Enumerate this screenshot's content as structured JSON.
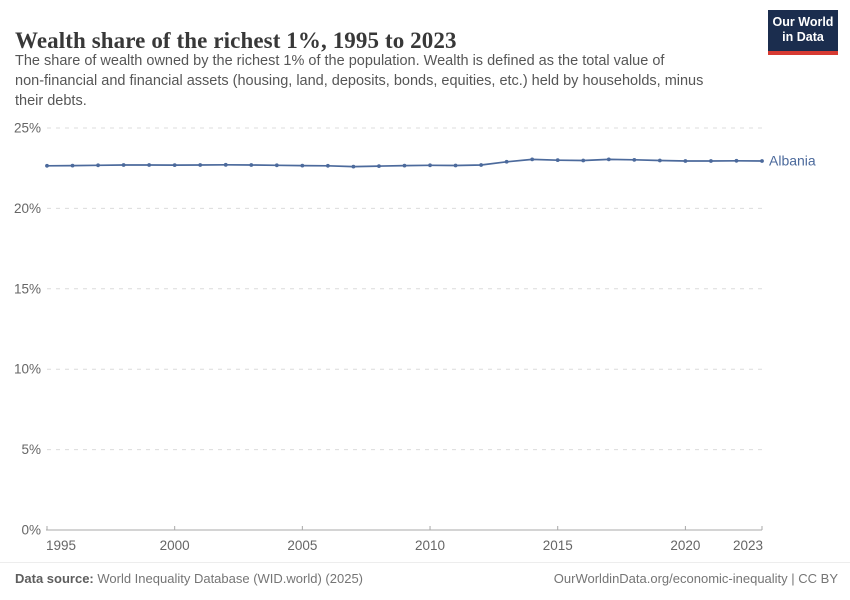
{
  "header": {
    "title": "Wealth share of the richest 1%, 1995 to 2023",
    "subtitle_lines": [
      "The share of wealth owned by the richest 1% of the population. Wealth is defined as the total value of",
      "non-financial and financial assets (housing, land, deposits, bonds, equities, etc.) held by households, minus",
      "their debts."
    ],
    "logo": {
      "line1": "Our World",
      "line2": "in Data",
      "bg_color": "#1b2d4e",
      "accent_color": "#d73a32"
    }
  },
  "chart_data": {
    "type": "line",
    "title": "Wealth share of the richest 1%, 1995 to 2023",
    "xlabel": "",
    "ylabel": "",
    "xlim": [
      1995,
      2023
    ],
    "ylim": [
      0,
      25
    ],
    "grid": "horizontal-dashed",
    "legend_position": "end-of-line",
    "colors": {
      "series": "#4C6A9C",
      "gridline": "#dcdcdc",
      "axis": "#a8a8a8",
      "tick_label": "#666666"
    },
    "x_ticks": [
      {
        "value": 1995,
        "label": "1995"
      },
      {
        "value": 2000,
        "label": "2000"
      },
      {
        "value": 2005,
        "label": "2005"
      },
      {
        "value": 2010,
        "label": "2010"
      },
      {
        "value": 2015,
        "label": "2015"
      },
      {
        "value": 2020,
        "label": "2020"
      },
      {
        "value": 2023,
        "label": "2023"
      }
    ],
    "y_ticks": [
      {
        "value": 0,
        "label": "0%"
      },
      {
        "value": 5,
        "label": "5%"
      },
      {
        "value": 10,
        "label": "10%"
      },
      {
        "value": 15,
        "label": "15%"
      },
      {
        "value": 20,
        "label": "20%"
      },
      {
        "value": 25,
        "label": "25%"
      }
    ],
    "x": [
      1995,
      1996,
      1997,
      1998,
      1999,
      2000,
      2001,
      2002,
      2003,
      2004,
      2005,
      2006,
      2007,
      2008,
      2009,
      2010,
      2011,
      2012,
      2013,
      2014,
      2015,
      2016,
      2017,
      2018,
      2019,
      2020,
      2021,
      2022,
      2023
    ],
    "series": [
      {
        "name": "Albania",
        "color": "#4C6A9C",
        "values": [
          22.65,
          22.66,
          22.68,
          22.7,
          22.7,
          22.69,
          22.7,
          22.71,
          22.7,
          22.68,
          22.66,
          22.65,
          22.6,
          22.63,
          22.66,
          22.68,
          22.67,
          22.7,
          22.9,
          23.05,
          23.0,
          22.98,
          23.05,
          23.02,
          22.98,
          22.95,
          22.95,
          22.96,
          22.95
        ]
      }
    ]
  },
  "footer": {
    "source_label": "Data source:",
    "source_text": " World Inequality Database (WID.world) (2025)",
    "credit": "OurWorldinData.org/economic-inequality | CC BY"
  }
}
